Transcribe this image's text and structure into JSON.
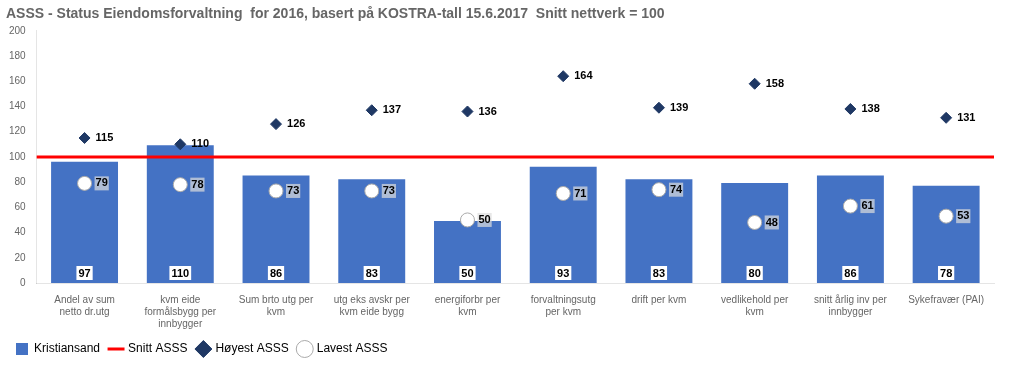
{
  "chart_data": {
    "type": "bar",
    "title": "ASSS - Status Eiendomsforvaltning  for 2016, basert på KOSTRA-tall 15.6.2017  Snitt nettverk = 100",
    "categories": [
      "Andel av sum\nnetto dr.utg",
      "kvm eide\nformålsbygg per\ninnbygger",
      "Sum brto utg per\nkvm",
      "utg eks avskr per\nkvm eide bygg",
      "energiforbr per\nkvm",
      "forvaltningsutg\nper kvm",
      "drift per kvm",
      "vedlikehold per\nkvm",
      "snitt årlig inv per\ninnbygger",
      "Sykefravær (PAI)"
    ],
    "series": [
      {
        "name": "Kristiansand",
        "type": "bar",
        "color": "#4472C4",
        "values": [
          97,
          110,
          86,
          83,
          50,
          93,
          83,
          80,
          86,
          78
        ],
        "data_labels": true
      },
      {
        "name": "Snitt ASSS",
        "type": "reference_line",
        "color": "#FF0000",
        "value": 100
      },
      {
        "name": "Høyest ASSS",
        "type": "scatter",
        "marker": "diamond",
        "color": "#1F3864",
        "values": [
          115,
          110,
          126,
          137,
          136,
          164,
          139,
          158,
          138,
          131
        ],
        "data_labels": true
      },
      {
        "name": "Lavest ASSS",
        "type": "scatter",
        "marker": "circle",
        "color": "#FFFFFF",
        "values": [
          79,
          78,
          73,
          73,
          50,
          71,
          74,
          48,
          61,
          53
        ],
        "data_labels": true
      }
    ],
    "ylim": [
      0,
      200
    ],
    "yticks": [
      0,
      20,
      40,
      60,
      80,
      100,
      120,
      140,
      160,
      180,
      200
    ],
    "grid": false,
    "legend": "bottom"
  }
}
